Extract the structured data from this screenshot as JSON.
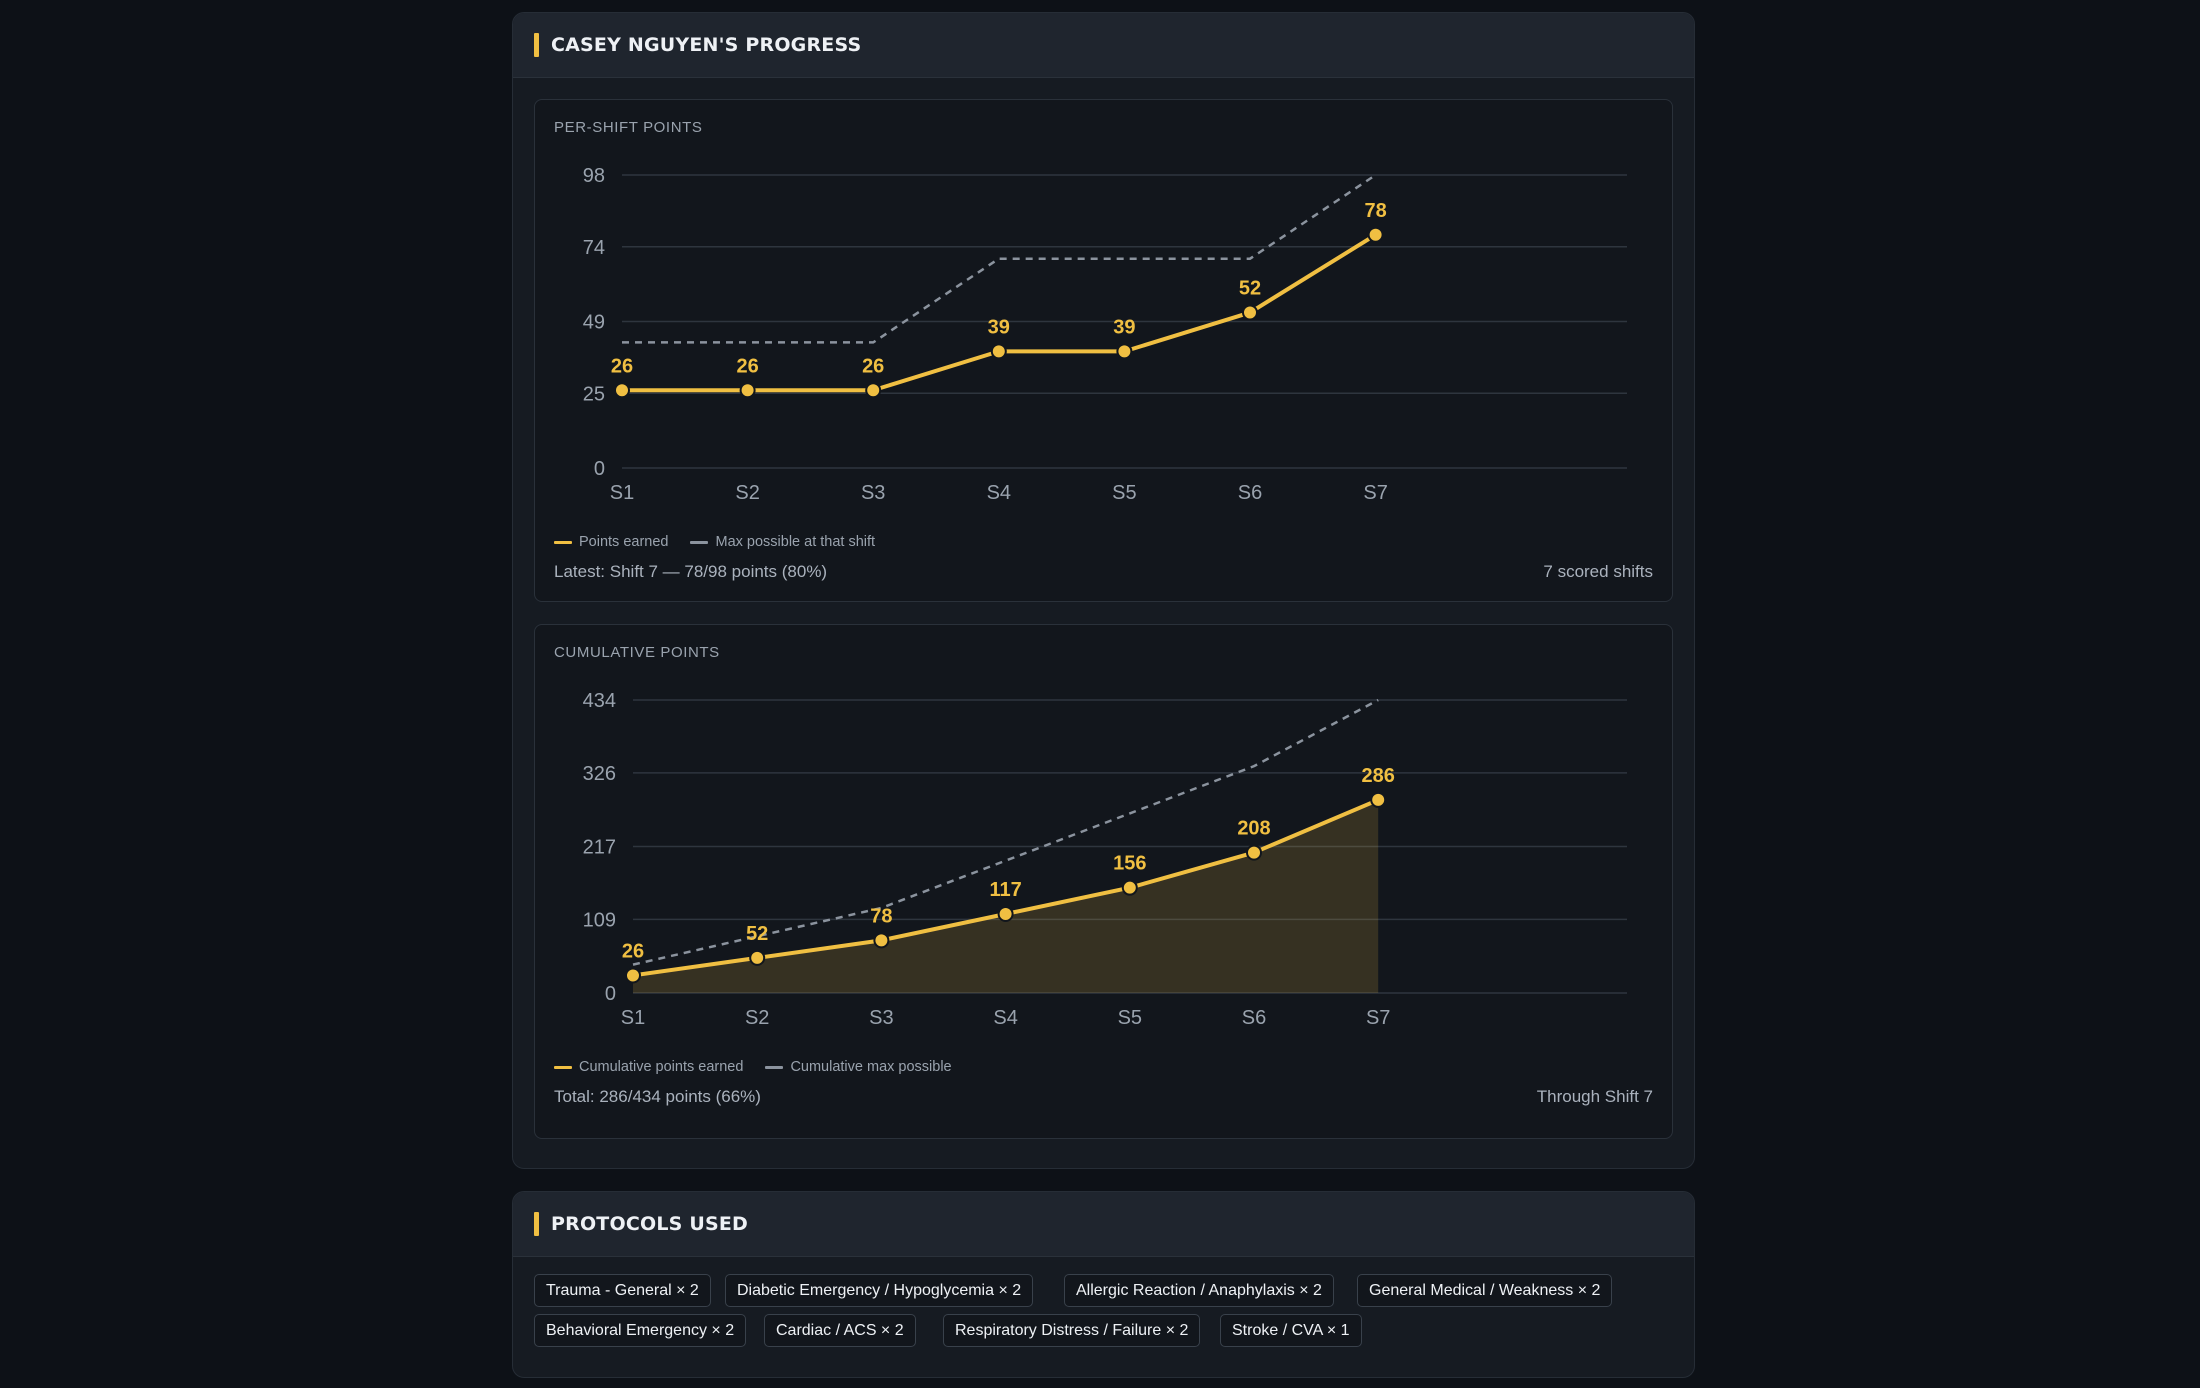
{
  "progress_panel": {
    "title": "CASEY NGUYEN'S PROGRESS"
  },
  "per_shift": {
    "title": "PER-SHIFT POINTS",
    "legend_earned": "Points earned",
    "legend_max": "Max possible at that shift",
    "footer_left": "Latest: Shift 7 — 78/98 points (80%)",
    "footer_right": "7 scored shifts"
  },
  "cumulative": {
    "title": "CUMULATIVE POINTS",
    "legend_earned": "Cumulative points earned",
    "legend_max": "Cumulative max possible",
    "footer_left": "Total: 286/434 points (66%)",
    "footer_right": "Through Shift 7"
  },
  "protocols_panel": {
    "title": "PROTOCOLS USED",
    "chips": [
      "Trauma - General × 2",
      "Diabetic Emergency / Hypoglycemia × 2",
      "Allergic Reaction / Anaphylaxis × 2",
      "General Medical / Weakness × 2",
      "Behavioral Emergency × 2",
      "Cardiac / ACS × 2",
      "Respiratory Distress / Failure × 2",
      "Stroke / CVA × 1"
    ]
  },
  "colors": {
    "earned": "#f0bf42",
    "max": "#8b939e",
    "grid": "#2e353e",
    "axis_text": "#9aa3ae"
  },
  "chart_data": [
    {
      "type": "line",
      "title": "PER-SHIFT POINTS",
      "categories": [
        "S1",
        "S2",
        "S3",
        "S4",
        "S5",
        "S6",
        "S7"
      ],
      "yticks": [
        0,
        25,
        49,
        74,
        98
      ],
      "ylim": [
        0,
        98
      ],
      "grid": true,
      "legend_position": "bottom-left",
      "series": [
        {
          "name": "Points earned",
          "values": [
            26,
            26,
            26,
            39,
            39,
            52,
            78
          ],
          "style": "solid",
          "labels": true
        },
        {
          "name": "Max possible at that shift",
          "values": [
            42,
            42,
            42,
            70,
            70,
            70,
            98
          ],
          "style": "dashed"
        }
      ]
    },
    {
      "type": "area",
      "title": "CUMULATIVE POINTS",
      "categories": [
        "S1",
        "S2",
        "S3",
        "S4",
        "S5",
        "S6",
        "S7"
      ],
      "yticks": [
        0,
        109,
        217,
        326,
        434
      ],
      "ylim": [
        0,
        434
      ],
      "grid": true,
      "legend_position": "bottom-left",
      "series": [
        {
          "name": "Cumulative points earned",
          "values": [
            26,
            52,
            78,
            117,
            156,
            208,
            286
          ],
          "style": "solid",
          "labels": true,
          "fill": true
        },
        {
          "name": "Cumulative max possible",
          "values": [
            42,
            84,
            126,
            196,
            266,
            336,
            434
          ],
          "style": "dashed"
        }
      ]
    }
  ]
}
